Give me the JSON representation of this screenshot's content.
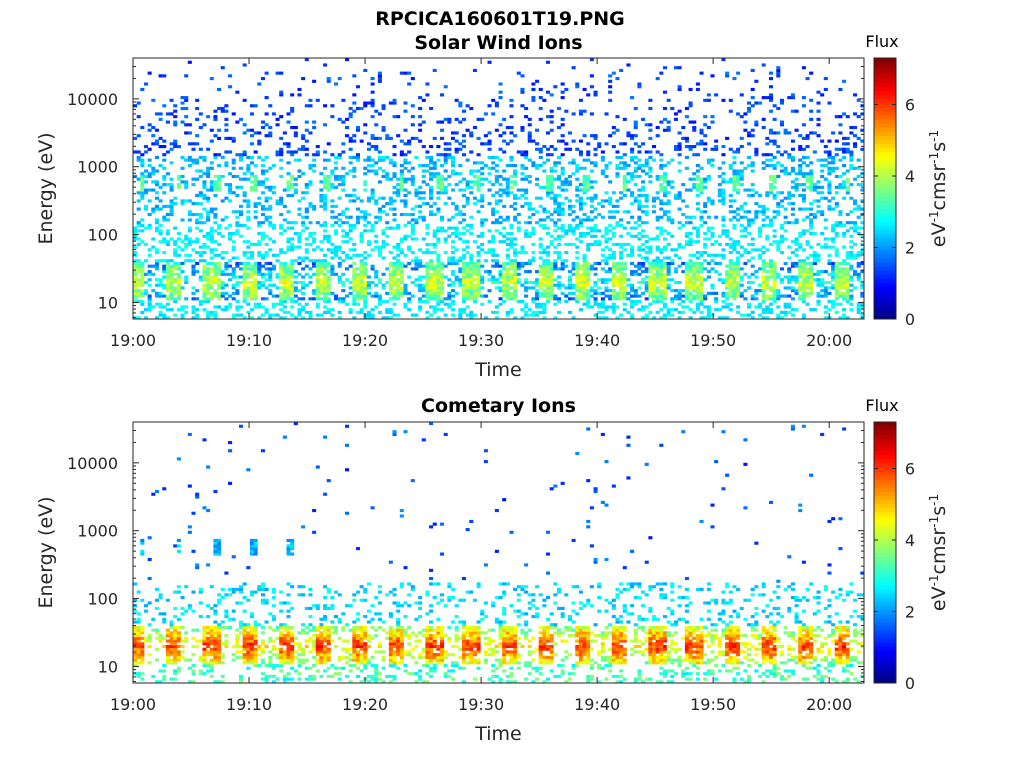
{
  "figure_title": "RPCICA160601T19.PNG",
  "colors": {
    "axis": "#262626",
    "colormap": "jet"
  },
  "chart_data": [
    {
      "type": "heatmap",
      "title": "Solar Wind Ions",
      "xlabel": "Time",
      "ylabel": "Energy (eV)",
      "xlim": [
        "19:00",
        "20:03"
      ],
      "xticks": [
        "19:00",
        "19:10",
        "19:20",
        "19:30",
        "19:40",
        "19:50",
        "20:00"
      ],
      "yscale": "log",
      "ylim": [
        5.7,
        40000
      ],
      "yticks": [
        "10",
        "100",
        "1000",
        "10000"
      ],
      "colorbar": {
        "title": "Flux",
        "label": "eV-1cm-2sr-1s-1",
        "range": [
          0,
          7.3
        ],
        "ticks": [
          "0",
          "2",
          "4",
          "6"
        ]
      },
      "pattern": {
        "sweep_period_min": 3.2,
        "bands": [
          {
            "energy_eV": 20,
            "flux": 4.2,
            "note": "periodic dense band"
          },
          {
            "energy_eV": 600,
            "flux": 3.4,
            "note": "periodic solar wind peak"
          }
        ],
        "background_flux_range": [
          1.0,
          2.8
        ]
      }
    },
    {
      "type": "heatmap",
      "title": "Cometary Ions",
      "xlabel": "Time",
      "ylabel": "Energy (eV)",
      "xlim": [
        "19:00",
        "20:03"
      ],
      "xticks": [
        "19:00",
        "19:10",
        "19:20",
        "19:30",
        "19:40",
        "19:50",
        "20:00"
      ],
      "yscale": "log",
      "ylim": [
        5.7,
        40000
      ],
      "yticks": [
        "10",
        "100",
        "1000",
        "10000"
      ],
      "colorbar": {
        "title": "Flux",
        "label": "eV-1cm-2sr-1s-1",
        "range": [
          0,
          7.3
        ],
        "ticks": [
          "0",
          "2",
          "4",
          "6"
        ]
      },
      "pattern": {
        "sweep_period_min": 3.2,
        "bands": [
          {
            "energy_eV": 20,
            "flux": 6.0,
            "note": "periodic intense low-energy band"
          },
          {
            "energy_eV": 600,
            "flux": 2.2,
            "note": "weak periodic feature early in interval"
          }
        ],
        "background_flux_range": [
          1.0,
          2.5
        ]
      }
    }
  ]
}
